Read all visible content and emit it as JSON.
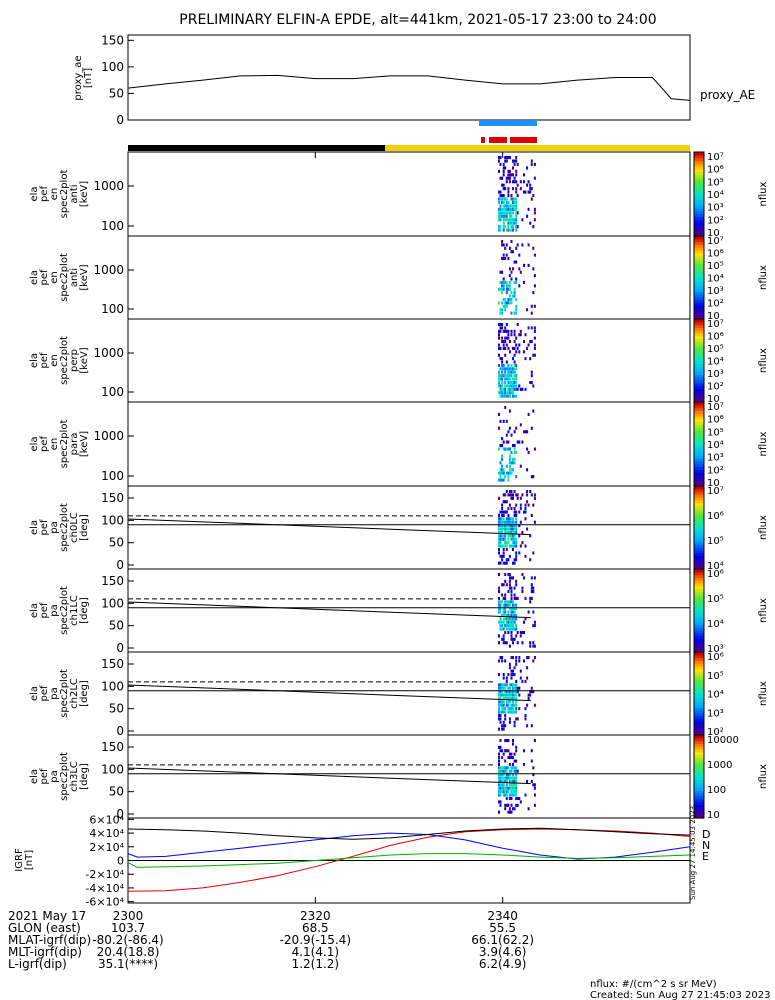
{
  "title": "PRELIMINARY ELFIN-A EPDE, alt=441km, 2021-05-17 23:00 to 24:00",
  "chart_data": {
    "type": "spectrogram-stack",
    "time_range": [
      "2021-05-17 23:00",
      "2021-05-17 24:00"
    ],
    "ae_panel": {
      "ylabel": "proxy_ae [nT]",
      "yticks": [
        0,
        50,
        100,
        150
      ],
      "ylim": [
        0,
        160
      ],
      "legend": "proxy_AE",
      "series": {
        "x_min": [
          0,
          4,
          8,
          12,
          16,
          20,
          24,
          28,
          32,
          36,
          40,
          44,
          48,
          52,
          56,
          58,
          60
        ],
        "values": [
          60,
          68,
          75,
          83,
          84,
          78,
          78,
          83,
          83,
          75,
          68,
          68,
          75,
          80,
          80,
          40,
          37
        ]
      }
    },
    "spec_panels": [
      {
        "ylabel": "ela pef en spec2plot anti [keV]",
        "yticks": [
          "100",
          "1000"
        ]
      },
      {
        "ylabel": "ela pef en spec2plot anti [keV]",
        "yticks": [
          "100",
          "1000"
        ]
      },
      {
        "ylabel": "ela pef en spec2plot perp [keV]",
        "yticks": [
          "100",
          "1000"
        ]
      },
      {
        "ylabel": "ela pef en spec2plot para [keV]",
        "yticks": [
          "100",
          "1000"
        ]
      },
      {
        "ylabel": "ela pef pa spec2plot ch0LC [deg]",
        "yticks": [
          "0",
          "50",
          "100",
          "150"
        ]
      },
      {
        "ylabel": "ela pef pa spec2plot ch1LC [deg]",
        "yticks": [
          "0",
          "50",
          "100",
          "150"
        ]
      },
      {
        "ylabel": "ela pef pa spec2plot ch2LC [deg]",
        "yticks": [
          "0",
          "50",
          "100",
          "150"
        ]
      },
      {
        "ylabel": "ela pef pa spec2plot ch3LC [deg]",
        "yticks": [
          "0",
          "50",
          "100",
          "150"
        ]
      }
    ],
    "colorbars": [
      {
        "label": "nflux",
        "ticks": [
          "10",
          "10²",
          "10³",
          "10⁴",
          "10⁵",
          "10⁶",
          "10⁷"
        ]
      },
      {
        "label": "nflux",
        "ticks": [
          "10",
          "10²",
          "10³",
          "10⁴",
          "10⁵",
          "10⁶",
          "10⁷"
        ]
      },
      {
        "label": "nflux",
        "ticks": [
          "10",
          "10²",
          "10³",
          "10⁴",
          "10⁵",
          "10⁶",
          "10⁷"
        ]
      },
      {
        "label": "nflux",
        "ticks": [
          "10",
          "10²",
          "10³",
          "10⁴",
          "10⁵",
          "10⁶",
          "10⁷"
        ]
      },
      {
        "label": "nflux",
        "ticks": [
          "10⁴",
          "10⁵",
          "10⁶",
          "10⁷"
        ]
      },
      {
        "label": "nflux",
        "ticks": [
          "10³",
          "10⁴",
          "10⁵",
          "10⁶"
        ]
      },
      {
        "label": "nflux",
        "ticks": [
          "10²",
          "10³",
          "10⁴",
          "10⁵",
          "10⁶"
        ]
      },
      {
        "label": "nflux",
        "ticks": [
          "10",
          "100",
          "1000",
          "10000"
        ]
      }
    ],
    "igrf_panel": {
      "ylabel": "IGRF [nT]",
      "yticks": [
        "-6×10⁴",
        "-4×10⁴",
        "-2×10⁴",
        "0",
        "2×10⁴",
        "4×10⁴",
        "6×10⁴"
      ],
      "ylim": [
        -62000,
        62000
      ],
      "legend": [
        "D",
        "N",
        "E"
      ],
      "series": [
        {
          "name": "D",
          "color": "#e00000",
          "x_min": [
            0,
            4,
            8,
            12,
            16,
            20,
            24,
            28,
            32,
            36,
            40,
            44,
            48,
            52,
            56,
            60
          ],
          "values": [
            -45000,
            -44000,
            -40000,
            -32000,
            -22000,
            -9000,
            6000,
            22000,
            34000,
            42000,
            45000,
            46000,
            45000,
            43000,
            40000,
            35000
          ]
        },
        {
          "name": "N",
          "color": "#0000ff",
          "x_min": [
            0,
            1,
            4,
            8,
            12,
            16,
            20,
            24,
            28,
            32,
            36,
            40,
            44,
            48,
            52,
            56,
            60
          ],
          "values": [
            10000,
            5000,
            6000,
            12000,
            18000,
            24000,
            30000,
            36000,
            40000,
            38000,
            30000,
            18000,
            8000,
            2000,
            5000,
            12000,
            20000
          ]
        },
        {
          "name": "E",
          "color": "#00b000",
          "x_min": [
            0,
            1,
            4,
            8,
            12,
            16,
            20,
            24,
            28,
            32,
            36,
            40,
            44,
            48,
            52,
            56,
            60
          ],
          "values": [
            -3000,
            -10000,
            -9000,
            -8000,
            -6000,
            -4000,
            0,
            4000,
            8000,
            10000,
            10000,
            8000,
            5000,
            3000,
            4000,
            6000,
            8000
          ]
        },
        {
          "name": "",
          "color": "#000000",
          "x_min": [
            0,
            4,
            8,
            12,
            16,
            20,
            24,
            28,
            32,
            36,
            40,
            44,
            48,
            52,
            56,
            60
          ],
          "values": [
            46000,
            45000,
            43000,
            40000,
            36000,
            33000,
            31000,
            33000,
            38000,
            43000,
            46000,
            47000,
            45000,
            42000,
            39000,
            37000
          ]
        }
      ]
    },
    "axis_labels": [
      [
        "2021 May 17",
        "2300",
        "2320",
        "2340"
      ],
      [
        "GLON (east)",
        "103.7",
        "68.5",
        "55.5"
      ],
      [
        "MLAT-igrf(dip)",
        "-80.2(-86.4)",
        "-20.9(-15.4)",
        "66.1(62.2)"
      ],
      [
        "MLT-igrf(dip)",
        "20.4(18.8)",
        "4.1(4.1)",
        "3.9(4.6)"
      ],
      [
        "L-igrf(dip)",
        "35.1(****)",
        "1.2(1.2)",
        "6.2(4.9)"
      ]
    ],
    "footer": [
      "nflux: #/(cm^2 s sr MeV)",
      "Created: Sun Aug 27 21:45:03 2023"
    ],
    "side_stamp": "Sun Aug 27 14:45:03 2023"
  }
}
